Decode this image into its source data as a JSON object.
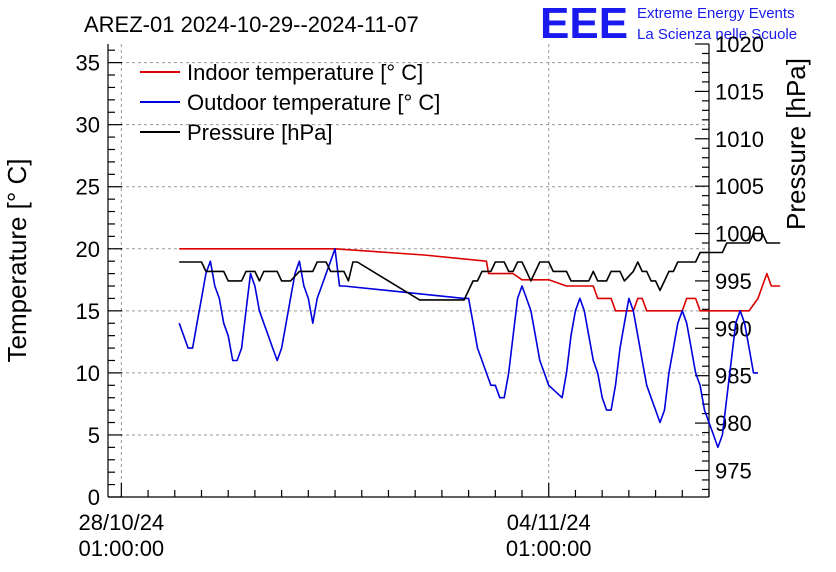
{
  "title": "AREZ-01 2024-10-29--2024-11-07",
  "logo": {
    "mark": "EEE",
    "line1": "Extreme Energy Events",
    "line2": "La Scienza nelle Scuole"
  },
  "chart_data": {
    "type": "line",
    "title": "AREZ-01 2024-10-29--2024-11-07",
    "x_axis": {
      "type": "time",
      "range_hours": [
        -3,
        132
      ],
      "tick_labels": [
        {
          "hour": 0,
          "line1": "28/10/24",
          "line2": "01:00:00"
        },
        {
          "hour": 96,
          "line1": "04/11/24",
          "line2": "01:00:00"
        }
      ],
      "tick_reference": "hours after 28/10/24 01:00:00"
    },
    "y_left": {
      "label": "Temperature [° C]",
      "range": [
        0,
        36.5
      ],
      "ticks": [
        0,
        5,
        10,
        15,
        20,
        25,
        30,
        35
      ]
    },
    "y_right": {
      "label": "Pressure [hPa]",
      "range": [
        972.2,
        1020
      ],
      "ticks": [
        975,
        980,
        985,
        990,
        995,
        1000,
        1005,
        1010,
        1015,
        1020
      ]
    },
    "grid": true,
    "legend_position": "top-left",
    "series": [
      {
        "name": "Indoor temperature [° C]",
        "axis": "left",
        "color": "#dd0000",
        "points": [
          [
            13,
            20
          ],
          [
            48,
            20
          ],
          [
            68,
            19.5
          ],
          [
            82,
            19
          ],
          [
            82.5,
            18
          ],
          [
            88,
            18
          ],
          [
            90,
            17.5
          ],
          [
            96,
            17.5
          ],
          [
            100,
            17
          ],
          [
            106,
            17
          ],
          [
            107,
            16
          ],
          [
            110,
            16
          ],
          [
            111,
            15
          ],
          [
            115,
            15
          ],
          [
            116,
            16
          ],
          [
            117,
            16
          ],
          [
            118,
            15
          ],
          [
            126,
            15
          ],
          [
            127,
            16
          ],
          [
            129,
            16
          ],
          [
            130,
            15
          ],
          [
            141,
            15
          ],
          [
            143,
            16
          ],
          [
            144,
            17
          ],
          [
            145,
            18
          ],
          [
            146,
            17
          ],
          [
            148,
            17
          ]
        ]
      },
      {
        "name": "Outdoor temperature [° C]",
        "axis": "left",
        "color": "#0000dd",
        "points": [
          [
            13,
            14
          ],
          [
            14,
            13
          ],
          [
            15,
            12
          ],
          [
            16,
            12
          ],
          [
            17,
            14
          ],
          [
            18,
            16
          ],
          [
            19,
            18
          ],
          [
            20,
            19
          ],
          [
            21,
            17
          ],
          [
            22,
            16
          ],
          [
            23,
            14
          ],
          [
            24,
            13
          ],
          [
            25,
            11
          ],
          [
            26,
            11
          ],
          [
            27,
            12
          ],
          [
            28,
            15
          ],
          [
            29,
            18
          ],
          [
            30,
            17
          ],
          [
            31,
            15
          ],
          [
            32,
            14
          ],
          [
            33,
            13
          ],
          [
            34,
            12
          ],
          [
            35,
            11
          ],
          [
            36,
            12
          ],
          [
            37,
            14
          ],
          [
            38,
            16
          ],
          [
            39,
            18
          ],
          [
            40,
            19
          ],
          [
            41,
            17
          ],
          [
            42,
            16
          ],
          [
            43,
            14
          ],
          [
            44,
            16
          ],
          [
            45,
            17
          ],
          [
            46,
            18
          ],
          [
            47,
            19
          ],
          [
            48,
            20
          ],
          [
            49,
            17
          ],
          [
            50,
            17
          ],
          [
            77,
            16
          ],
          [
            78,
            16
          ],
          [
            79,
            14
          ],
          [
            80,
            12
          ],
          [
            81,
            11
          ],
          [
            82,
            10
          ],
          [
            83,
            9
          ],
          [
            84,
            9
          ],
          [
            85,
            8
          ],
          [
            86,
            8
          ],
          [
            87,
            10
          ],
          [
            88,
            13
          ],
          [
            89,
            16
          ],
          [
            90,
            17
          ],
          [
            91,
            16
          ],
          [
            92,
            15
          ],
          [
            93,
            13
          ],
          [
            94,
            11
          ],
          [
            95,
            10
          ],
          [
            96,
            9
          ],
          [
            99,
            8
          ],
          [
            100,
            10
          ],
          [
            101,
            13
          ],
          [
            102,
            15
          ],
          [
            103,
            16
          ],
          [
            104,
            15
          ],
          [
            105,
            13
          ],
          [
            106,
            11
          ],
          [
            107,
            10
          ],
          [
            108,
            8
          ],
          [
            109,
            7
          ],
          [
            110,
            7
          ],
          [
            111,
            9
          ],
          [
            112,
            12
          ],
          [
            113,
            14
          ],
          [
            114,
            16
          ],
          [
            115,
            15
          ],
          [
            116,
            13
          ],
          [
            117,
            11
          ],
          [
            118,
            9
          ],
          [
            119,
            8
          ],
          [
            120,
            7
          ],
          [
            121,
            6
          ],
          [
            122,
            7
          ],
          [
            123,
            10
          ],
          [
            124,
            12
          ],
          [
            125,
            14
          ],
          [
            126,
            15
          ],
          [
            127,
            14
          ],
          [
            128,
            12
          ],
          [
            129,
            10
          ],
          [
            130,
            9
          ],
          [
            131,
            7
          ],
          [
            132,
            6
          ],
          [
            133,
            5
          ],
          [
            134,
            4
          ],
          [
            135,
            5
          ],
          [
            136,
            8
          ],
          [
            137,
            11
          ],
          [
            138,
            14
          ],
          [
            139,
            15
          ],
          [
            140,
            14
          ],
          [
            141,
            12
          ],
          [
            142,
            10
          ],
          [
            143,
            10
          ]
        ]
      },
      {
        "name": "Pressure [hPa]",
        "axis": "right",
        "color": "#000000",
        "points": [
          [
            13,
            997
          ],
          [
            18,
            997
          ],
          [
            19,
            996
          ],
          [
            23,
            996
          ],
          [
            24,
            995
          ],
          [
            27,
            995
          ],
          [
            28,
            996
          ],
          [
            30,
            996
          ],
          [
            31,
            995
          ],
          [
            32,
            996
          ],
          [
            35,
            996
          ],
          [
            36,
            995
          ],
          [
            38,
            995
          ],
          [
            40,
            996
          ],
          [
            42,
            996
          ],
          [
            43,
            996
          ],
          [
            44,
            997
          ],
          [
            46,
            997
          ],
          [
            47,
            996
          ],
          [
            48,
            996
          ],
          [
            50,
            996
          ],
          [
            51,
            995
          ],
          [
            52,
            997
          ],
          [
            53,
            997
          ],
          [
            67,
            993
          ],
          [
            77,
            993
          ],
          [
            78,
            994
          ],
          [
            79,
            995
          ],
          [
            80,
            995
          ],
          [
            81,
            996
          ],
          [
            82,
            996
          ],
          [
            83,
            996
          ],
          [
            84,
            997
          ],
          [
            85,
            997
          ],
          [
            86,
            997
          ],
          [
            87,
            996
          ],
          [
            88,
            996
          ],
          [
            89,
            997
          ],
          [
            90,
            997
          ],
          [
            91,
            996
          ],
          [
            92,
            995
          ],
          [
            93,
            996
          ],
          [
            94,
            997
          ],
          [
            96,
            997
          ],
          [
            97,
            996
          ],
          [
            99,
            996
          ],
          [
            100,
            996
          ],
          [
            101,
            995
          ],
          [
            105,
            995
          ],
          [
            106,
            996
          ],
          [
            107,
            995
          ],
          [
            109,
            995
          ],
          [
            110,
            996
          ],
          [
            112,
            996
          ],
          [
            113,
            995
          ],
          [
            115,
            996
          ],
          [
            116,
            997
          ],
          [
            117,
            996
          ],
          [
            118,
            996
          ],
          [
            119,
            995
          ],
          [
            120,
            995
          ],
          [
            121,
            994
          ],
          [
            122,
            995
          ],
          [
            123,
            996
          ],
          [
            124,
            996
          ],
          [
            125,
            997
          ],
          [
            126,
            997
          ],
          [
            127,
            997
          ],
          [
            128,
            997
          ],
          [
            129,
            997
          ],
          [
            130,
            998
          ],
          [
            132,
            998
          ],
          [
            133,
            998
          ],
          [
            134,
            998
          ],
          [
            135,
            998
          ],
          [
            136,
            999
          ],
          [
            141,
            999
          ],
          [
            142,
            1000
          ],
          [
            143,
            1000
          ],
          [
            144,
            1000
          ],
          [
            145,
            999
          ],
          [
            148,
            999
          ]
        ]
      }
    ]
  }
}
